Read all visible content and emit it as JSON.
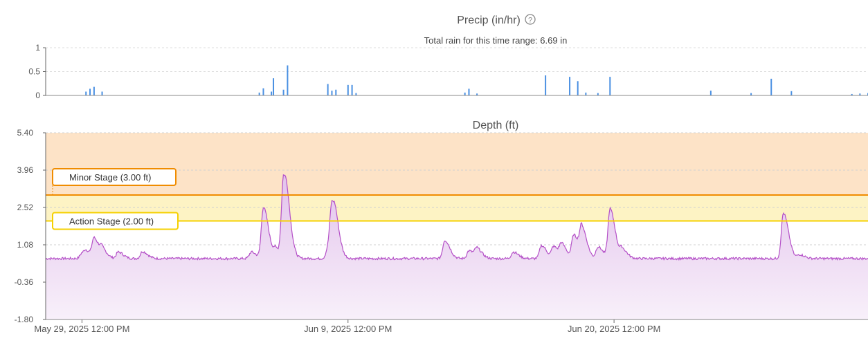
{
  "chart_data": [
    {
      "type": "bar",
      "title": "Precip (in/hr)",
      "subtitle": "Total rain for this time range: 6.69 in",
      "help_icon": "question-circle-icon",
      "ylim": [
        0,
        1
      ],
      "yticks": [
        "0",
        "0.5",
        "1"
      ],
      "x_range": [
        "May 28, 2025",
        "Jul 1, 2025"
      ],
      "grid": true,
      "color": "#4a90e2",
      "x": [
        "May 29 16:00",
        "May 29 20:00",
        "May 30 00:00",
        "May 30 08:00",
        "Jun 5 20:00",
        "Jun 6 00:00",
        "Jun 6 08:00",
        "Jun 6 10:00",
        "Jun 6 20:00",
        "Jun 7 00:00",
        "Jun 8 16:00",
        "Jun 8 20:00",
        "Jun 9 00:00",
        "Jun 9 12:00",
        "Jun 9 16:00",
        "Jun 9 20:00",
        "Jun 14 08:00",
        "Jun 14 12:00",
        "Jun 14 20:00",
        "Jun 17 16:00",
        "Jun 18 16:00",
        "Jun 19 00:00",
        "Jun 19 08:00",
        "Jun 19 20:00",
        "Jun 20 08:00",
        "Jun 24 12:00",
        "Jun 26 04:00",
        "Jun 27 00:00",
        "Jun 27 20:00",
        "Jun 30 08:00",
        "Jun 30 16:00",
        "Jul 1 00:00"
      ],
      "values": [
        0.08,
        0.14,
        0.18,
        0.08,
        0.06,
        0.15,
        0.08,
        0.36,
        0.12,
        0.63,
        0.24,
        0.1,
        0.12,
        0.22,
        0.22,
        0.05,
        0.06,
        0.14,
        0.04,
        0.42,
        0.39,
        0.3,
        0.06,
        0.05,
        0.39,
        0.1,
        0.05,
        0.35,
        0.09,
        0.03,
        0.04,
        0.05
      ]
    },
    {
      "type": "area",
      "title": "Depth (ft)",
      "ylim": [
        -1.8,
        5.4
      ],
      "yticks": [
        "-1.80",
        "-0.36",
        "1.08",
        "2.52",
        "3.96",
        "5.40"
      ],
      "xticks": [
        "May 29, 2025 12:00 PM",
        "Jun 9, 2025 12:00 PM",
        "Jun 20, 2025 12:00 PM"
      ],
      "x_range": [
        "May 28, 2025",
        "Jul 1, 2025"
      ],
      "grid": true,
      "series_color": "#b44fc7",
      "baseline": 0.55,
      "annotations": [
        {
          "label": "Minor Stage (3.00 ft)",
          "value": 3.0,
          "color": "#f08c00",
          "fill": "#fde3c7"
        },
        {
          "label": "Action Stage (2.00 ft)",
          "value": 2.0,
          "color": "#f5d000",
          "fill": "#fdf3c4"
        }
      ],
      "x": [
        "May 29 12:00",
        "May 29 16:00",
        "May 30 00:00",
        "May 30 08:00",
        "May 31 00:00",
        "Jun 1 00:00",
        "Jun 5 12:00",
        "Jun 6 00:00",
        "Jun 6 12:00",
        "Jun 6 20:00",
        "Jun 7 00:00",
        "Jun 8 16:00",
        "Jun 8 20:00",
        "Jun 9 00:00",
        "Jun 13 12:00",
        "Jun 14 12:00",
        "Jun 14 20:00",
        "Jun 16 08:00",
        "Jun 17 12:00",
        "Jun 18 00:00",
        "Jun 18 08:00",
        "Jun 18 20:00",
        "Jun 19 04:00",
        "Jun 19 20:00",
        "Jun 20 08:00",
        "Jun 20 20:00",
        "Jun 27 12:00",
        "Jun 28 04:00",
        "Jul 1 00:00"
      ],
      "values": [
        0.75,
        0.75,
        1.3,
        0.85,
        0.8,
        0.82,
        0.8,
        2.52,
        0.9,
        3.62,
        1.0,
        0.9,
        2.45,
        1.0,
        1.25,
        0.85,
        0.9,
        0.8,
        1.05,
        1.0,
        1.05,
        1.45,
        1.65,
        1.0,
        2.45,
        0.9,
        2.3,
        0.7,
        0.55
      ]
    }
  ]
}
